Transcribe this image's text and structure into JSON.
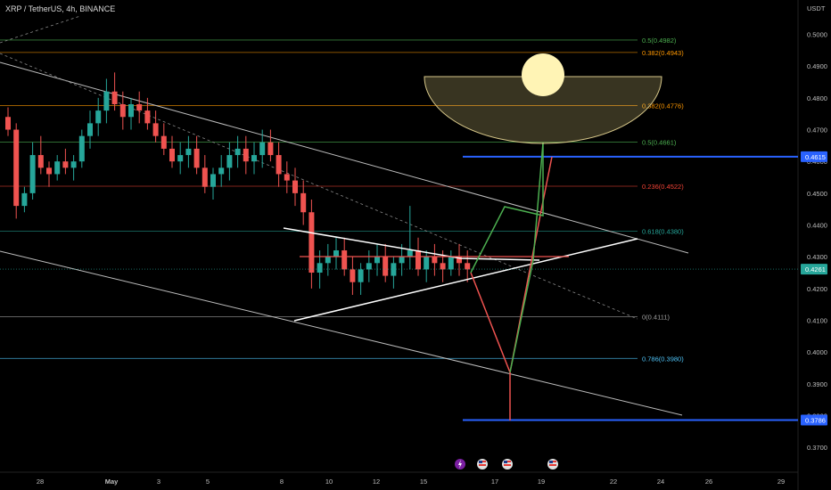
{
  "header": {
    "symbol": "XRP / TetherUS, 4h, BINANCE"
  },
  "chart_data": {
    "type": "candlestick",
    "price_axis": {
      "unit_label": "USDT",
      "ticks": [
        "0.5000",
        "0.4900",
        "0.4800",
        "0.4700",
        "0.4600",
        "0.4500",
        "0.4400",
        "0.4300",
        "0.4200",
        "0.4100",
        "0.4000",
        "0.3900",
        "0.3800",
        "0.3700"
      ],
      "range": [
        0.365,
        0.508
      ]
    },
    "time_axis": {
      "ticks": [
        "28",
        "May",
        "3",
        "5",
        "8",
        "10",
        "12",
        "15",
        "17",
        "19",
        "22",
        "24",
        "26",
        "29"
      ]
    },
    "fib_levels": [
      {
        "label": "0.5(0.4982)",
        "price": 0.4982,
        "color": "#4caf50"
      },
      {
        "label": "0.382(0.4943)",
        "price": 0.4943,
        "color": "#ff9800"
      },
      {
        "label": "0.382(0.4776)",
        "price": 0.4776,
        "color": "#ff9800"
      },
      {
        "label": "0.5(0.4661)",
        "price": 0.4661,
        "color": "#4caf50"
      },
      {
        "label": "0.236(0.4522)",
        "price": 0.4522,
        "color": "#f44336"
      },
      {
        "label": "0.618(0.4380)",
        "price": 0.438,
        "color": "#26a69a"
      },
      {
        "label": "0(0.4111)",
        "price": 0.4111,
        "color": "#9e9e9e"
      },
      {
        "label": "0.786(0.3980)",
        "price": 0.398,
        "color": "#4fc3f7"
      }
    ],
    "horizontal_levels": [
      {
        "label": "0.4615",
        "price": 0.4615,
        "color": "#2962ff"
      },
      {
        "label": "0.3786",
        "price": 0.3786,
        "color": "#2962ff"
      }
    ],
    "current_price": {
      "label": "0.4261",
      "price": 0.4261,
      "color": "#26a69a"
    },
    "candles": [
      [
        0.474,
        0.477,
        0.468,
        0.47
      ],
      [
        0.47,
        0.472,
        0.442,
        0.446
      ],
      [
        0.446,
        0.452,
        0.444,
        0.45
      ],
      [
        0.45,
        0.466,
        0.448,
        0.462
      ],
      [
        0.462,
        0.468,
        0.456,
        0.458
      ],
      [
        0.458,
        0.46,
        0.452,
        0.456
      ],
      [
        0.456,
        0.462,
        0.454,
        0.46
      ],
      [
        0.46,
        0.464,
        0.456,
        0.458
      ],
      [
        0.458,
        0.462,
        0.454,
        0.46
      ],
      [
        0.46,
        0.47,
        0.458,
        0.468
      ],
      [
        0.468,
        0.476,
        0.464,
        0.472
      ],
      [
        0.472,
        0.48,
        0.468,
        0.476
      ],
      [
        0.476,
        0.486,
        0.472,
        0.482
      ],
      [
        0.482,
        0.488,
        0.476,
        0.478
      ],
      [
        0.478,
        0.482,
        0.47,
        0.474
      ],
      [
        0.474,
        0.48,
        0.47,
        0.478
      ],
      [
        0.478,
        0.482,
        0.472,
        0.476
      ],
      [
        0.476,
        0.48,
        0.47,
        0.472
      ],
      [
        0.472,
        0.476,
        0.466,
        0.468
      ],
      [
        0.468,
        0.472,
        0.462,
        0.464
      ],
      [
        0.464,
        0.468,
        0.458,
        0.46
      ],
      [
        0.46,
        0.466,
        0.456,
        0.462
      ],
      [
        0.462,
        0.468,
        0.458,
        0.464
      ],
      [
        0.464,
        0.468,
        0.456,
        0.458
      ],
      [
        0.458,
        0.462,
        0.45,
        0.452
      ],
      [
        0.452,
        0.458,
        0.448,
        0.456
      ],
      [
        0.456,
        0.462,
        0.452,
        0.458
      ],
      [
        0.458,
        0.466,
        0.454,
        0.462
      ],
      [
        0.462,
        0.468,
        0.458,
        0.464
      ],
      [
        0.464,
        0.468,
        0.456,
        0.46
      ],
      [
        0.46,
        0.466,
        0.456,
        0.462
      ],
      [
        0.462,
        0.47,
        0.458,
        0.466
      ],
      [
        0.466,
        0.47,
        0.46,
        0.462
      ],
      [
        0.462,
        0.466,
        0.452,
        0.456
      ],
      [
        0.456,
        0.46,
        0.45,
        0.454
      ],
      [
        0.454,
        0.458,
        0.446,
        0.45
      ],
      [
        0.45,
        0.454,
        0.44,
        0.444
      ],
      [
        0.444,
        0.448,
        0.42,
        0.425
      ],
      [
        0.425,
        0.432,
        0.42,
        0.428
      ],
      [
        0.428,
        0.434,
        0.424,
        0.43
      ],
      [
        0.43,
        0.436,
        0.426,
        0.432
      ],
      [
        0.432,
        0.436,
        0.424,
        0.426
      ],
      [
        0.426,
        0.43,
        0.418,
        0.422
      ],
      [
        0.422,
        0.428,
        0.418,
        0.426
      ],
      [
        0.426,
        0.432,
        0.422,
        0.428
      ],
      [
        0.428,
        0.434,
        0.424,
        0.43
      ],
      [
        0.43,
        0.434,
        0.422,
        0.424
      ],
      [
        0.424,
        0.43,
        0.42,
        0.428
      ],
      [
        0.428,
        0.434,
        0.424,
        0.43
      ],
      [
        0.43,
        0.446,
        0.426,
        0.432
      ],
      [
        0.432,
        0.436,
        0.424,
        0.426
      ],
      [
        0.426,
        0.432,
        0.422,
        0.43
      ],
      [
        0.43,
        0.434,
        0.424,
        0.428
      ],
      [
        0.428,
        0.432,
        0.422,
        0.426
      ],
      [
        0.426,
        0.432,
        0.424,
        0.43
      ],
      [
        0.43,
        0.434,
        0.424,
        0.428
      ],
      [
        0.428,
        0.432,
        0.422,
        0.426
      ]
    ],
    "title": "",
    "xlabel": "",
    "ylabel": ""
  },
  "event_icons": [
    "bolt-icon",
    "us-flag-icon",
    "us-flag-icon",
    "us-flag-icon"
  ]
}
